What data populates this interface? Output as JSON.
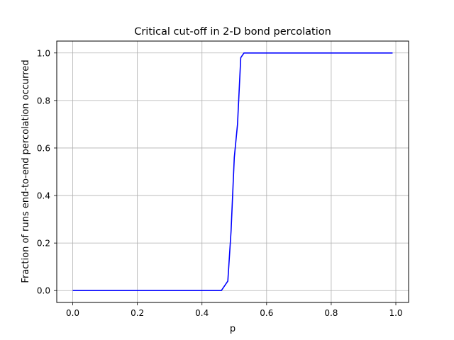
{
  "chart_data": {
    "type": "line",
    "title": "Critical cut-off in 2-D bond percolation",
    "xlabel": "p",
    "ylabel": "Fraction of runs end-to-end percolation occurred",
    "xlim": [
      -0.0495,
      1.0395
    ],
    "ylim": [
      -0.05,
      1.05
    ],
    "xticks": [
      0.0,
      0.2,
      0.4,
      0.6,
      0.8,
      1.0
    ],
    "xtick_labels": [
      "0.0",
      "0.2",
      "0.4",
      "0.6",
      "0.8",
      "1.0"
    ],
    "yticks": [
      0.0,
      0.2,
      0.4,
      0.6,
      0.8,
      1.0
    ],
    "ytick_labels": [
      "0.0",
      "0.2",
      "0.4",
      "0.6",
      "0.8",
      "1.0"
    ],
    "grid": true,
    "series": [
      {
        "color": "#0000ff",
        "x": [
          0.0,
          0.46,
          0.48,
          0.49,
          0.5,
          0.51,
          0.52,
          0.53,
          0.54,
          0.99
        ],
        "y": [
          0.0,
          0.0,
          0.04,
          0.25,
          0.56,
          0.7,
          0.98,
          1.0,
          1.0,
          1.0
        ]
      }
    ]
  }
}
